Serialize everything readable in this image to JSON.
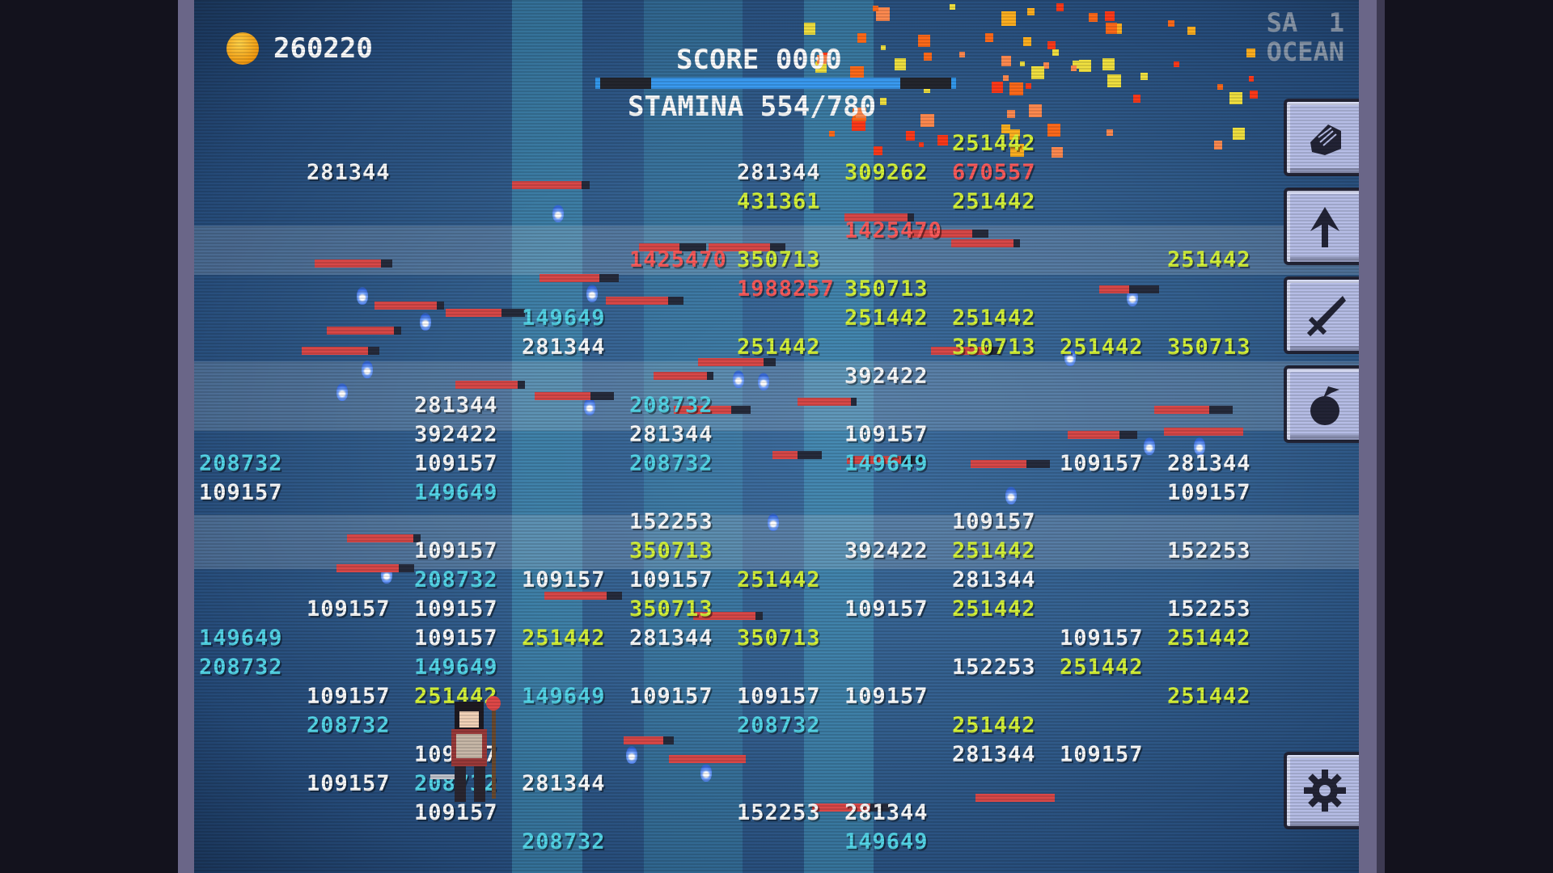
{
  "hud": {
    "gold": "260220",
    "score_label": "SCORE 0000",
    "stamina_label": "STAMINA 554/780",
    "stamina_current": 554,
    "stamina_max": 780,
    "stage_line1": "SA  1",
    "stage_line2": "OCEAN"
  },
  "side_buttons": [
    {
      "name": "fist",
      "icon": "fist-icon"
    },
    {
      "name": "upgrade",
      "icon": "arrow-up-icon"
    },
    {
      "name": "weapon",
      "icon": "sword-icon"
    },
    {
      "name": "item",
      "icon": "apple-icon"
    },
    {
      "name": "settings",
      "icon": "gear-icon"
    }
  ],
  "colors": {
    "white": "#ffffff",
    "yellow": "#d8f53a",
    "cyan": "#55d8ea",
    "red": "#ff5c5c",
    "bg": "#34608f"
  },
  "damage_numbers": [
    {
      "v": "281344",
      "c": "white"
    },
    {
      "v": "281344",
      "c": "white"
    },
    {
      "v": "251442",
      "c": "yellow"
    },
    {
      "v": "309262",
      "c": "yellow"
    },
    {
      "v": "670557",
      "c": "red"
    },
    {
      "v": "431361",
      "c": "yellow"
    },
    {
      "v": "251442",
      "c": "yellow"
    },
    {
      "v": "1425470",
      "c": "red"
    },
    {
      "v": "1425470",
      "c": "red"
    },
    {
      "v": "350713",
      "c": "yellow"
    },
    {
      "v": "251442",
      "c": "yellow"
    },
    {
      "v": "1988257",
      "c": "red"
    },
    {
      "v": "350713",
      "c": "yellow"
    },
    {
      "v": "251442",
      "c": "yellow"
    },
    {
      "v": "251442",
      "c": "yellow"
    },
    {
      "v": "251442",
      "c": "yellow"
    },
    {
      "v": "350713",
      "c": "yellow"
    },
    {
      "v": "251442",
      "c": "yellow"
    },
    {
      "v": "392422",
      "c": "white"
    },
    {
      "v": "350713",
      "c": "yellow"
    },
    {
      "v": "281344",
      "c": "white"
    },
    {
      "v": "149649",
      "c": "cyan"
    },
    {
      "v": "281344",
      "c": "white"
    },
    {
      "v": "281344",
      "c": "white"
    },
    {
      "v": "208732",
      "c": "cyan"
    },
    {
      "v": "149649",
      "c": "cyan"
    },
    {
      "v": "109157",
      "c": "white"
    },
    {
      "v": "281344",
      "c": "white"
    },
    {
      "v": "109157",
      "c": "white"
    },
    {
      "v": "208732",
      "c": "cyan"
    },
    {
      "v": "208732",
      "c": "cyan"
    },
    {
      "v": "109157",
      "c": "white"
    },
    {
      "v": "392422",
      "c": "white"
    },
    {
      "v": "149649",
      "c": "cyan"
    },
    {
      "v": "109157",
      "c": "white"
    },
    {
      "v": "109157",
      "c": "white"
    },
    {
      "v": "152253",
      "c": "white"
    },
    {
      "v": "109157",
      "c": "white"
    },
    {
      "v": "392422",
      "c": "white"
    },
    {
      "v": "350713",
      "c": "yellow"
    },
    {
      "v": "109157",
      "c": "white"
    },
    {
      "v": "208732",
      "c": "cyan"
    },
    {
      "v": "152253",
      "c": "white"
    },
    {
      "v": "251442",
      "c": "yellow"
    },
    {
      "v": "109157",
      "c": "white"
    },
    {
      "v": "251442",
      "c": "yellow"
    },
    {
      "v": "109157",
      "c": "white"
    },
    {
      "v": "109157",
      "c": "white"
    },
    {
      "v": "109157",
      "c": "white"
    },
    {
      "v": "152253",
      "c": "white"
    },
    {
      "v": "281344",
      "c": "white"
    },
    {
      "v": "251442",
      "c": "yellow"
    },
    {
      "v": "350713",
      "c": "yellow"
    },
    {
      "v": "109157",
      "c": "white"
    },
    {
      "v": "149649",
      "c": "cyan"
    },
    {
      "v": "109157",
      "c": "white"
    },
    {
      "v": "350713",
      "c": "yellow"
    },
    {
      "v": "281344",
      "c": "white"
    },
    {
      "v": "251442",
      "c": "yellow"
    },
    {
      "v": "109157",
      "c": "white"
    },
    {
      "v": "208732",
      "c": "cyan"
    },
    {
      "v": "149649",
      "c": "cyan"
    },
    {
      "v": "251442",
      "c": "yellow"
    },
    {
      "v": "152253",
      "c": "white"
    },
    {
      "v": "251442",
      "c": "yellow"
    },
    {
      "v": "109157",
      "c": "white"
    },
    {
      "v": "251442",
      "c": "yellow"
    },
    {
      "v": "149649",
      "c": "cyan"
    },
    {
      "v": "109157",
      "c": "white"
    },
    {
      "v": "109157",
      "c": "white"
    },
    {
      "v": "109157",
      "c": "white"
    },
    {
      "v": "208732",
      "c": "cyan"
    },
    {
      "v": "251442",
      "c": "yellow"
    },
    {
      "v": "251442",
      "c": "yellow"
    },
    {
      "v": "208732",
      "c": "cyan"
    },
    {
      "v": "281344",
      "c": "white"
    },
    {
      "v": "109157",
      "c": "white"
    },
    {
      "v": "109157",
      "c": "white"
    },
    {
      "v": "109157",
      "c": "white"
    },
    {
      "v": "281344",
      "c": "white"
    },
    {
      "v": "109157",
      "c": "white"
    },
    {
      "v": "152253",
      "c": "white"
    },
    {
      "v": "208732",
      "c": "cyan"
    },
    {
      "v": "208732",
      "c": "cyan"
    },
    {
      "v": "281344",
      "c": "white"
    },
    {
      "v": "149649",
      "c": "cyan"
    }
  ]
}
